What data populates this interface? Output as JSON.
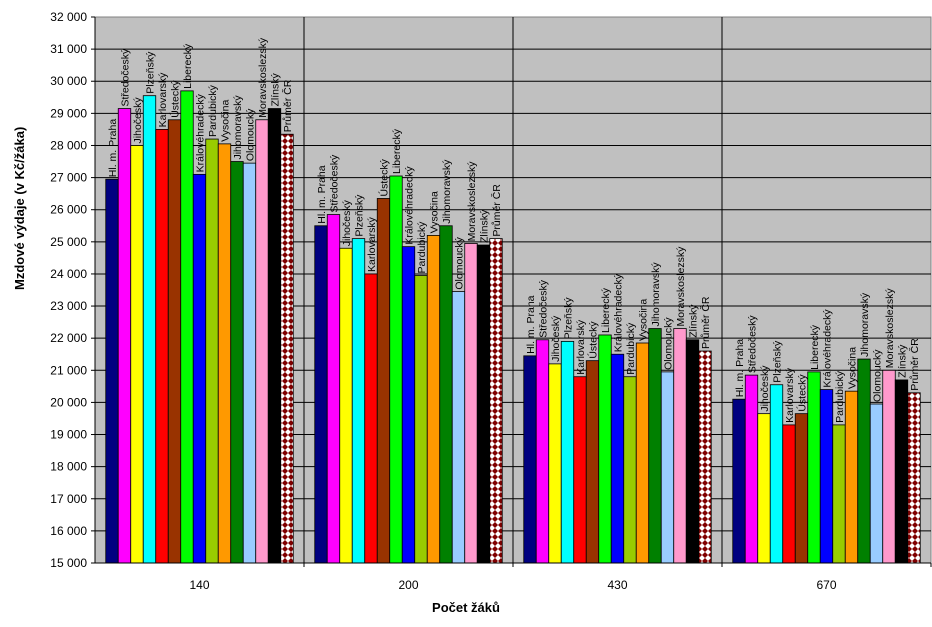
{
  "chart_data": {
    "type": "bar",
    "title": "",
    "xlabel": "Počet žáků",
    "ylabel": "Mzdové výdaje (v Kč/žáka)",
    "ylim": [
      15000,
      32000
    ],
    "ytick_step": 1000,
    "grid": true,
    "legend": "none",
    "categories": [
      "140",
      "200",
      "430",
      "670"
    ],
    "series": [
      {
        "name": "Hl. m. Praha",
        "color": "#000080",
        "pattern": "solid",
        "values": [
          26950,
          25500,
          21450,
          20100
        ]
      },
      {
        "name": "Středočeský",
        "color": "#ff00ff",
        "pattern": "solid",
        "values": [
          29150,
          25850,
          21950,
          20850
        ]
      },
      {
        "name": "Jihočeský",
        "color": "#ffff00",
        "pattern": "solid",
        "values": [
          28000,
          24800,
          21200,
          19650
        ]
      },
      {
        "name": "Plzeňský",
        "color": "#00ffff",
        "pattern": "solid",
        "values": [
          29550,
          25100,
          21900,
          20550
        ]
      },
      {
        "name": "Karlovarský",
        "color": "#ff0000",
        "pattern": "solid",
        "values": [
          28500,
          24000,
          20800,
          19300
        ]
      },
      {
        "name": "Ústecký",
        "color": "#993300",
        "pattern": "solid",
        "values": [
          28800,
          26350,
          21300,
          19650
        ]
      },
      {
        "name": "Liberecký",
        "color": "#00ff00",
        "pattern": "solid",
        "values": [
          29700,
          27050,
          22100,
          20950
        ]
      },
      {
        "name": "Královéhradecký",
        "color": "#0000ff",
        "pattern": "solid",
        "values": [
          27100,
          24850,
          21500,
          20400
        ]
      },
      {
        "name": "Pardubický",
        "color": "#99cc00",
        "pattern": "solid",
        "values": [
          28200,
          23950,
          20800,
          19300
        ]
      },
      {
        "name": "Vysočina",
        "color": "#ff9900",
        "pattern": "solid",
        "values": [
          28050,
          25200,
          21850,
          20350
        ]
      },
      {
        "name": "Jihomoravský",
        "color": "#008000",
        "pattern": "solid",
        "values": [
          27500,
          25500,
          22300,
          21350
        ]
      },
      {
        "name": "Olomoucký",
        "color": "#99ccff",
        "pattern": "solid",
        "values": [
          27450,
          23450,
          20950,
          19950
        ]
      },
      {
        "name": "Moravskoslezský",
        "color": "#ff99cc",
        "pattern": "solid",
        "values": [
          28800,
          24950,
          22300,
          21000
        ]
      },
      {
        "name": "Zlínský",
        "color": "#000000",
        "pattern": "solid",
        "values": [
          29150,
          24900,
          21950,
          20700
        ]
      },
      {
        "name": "Průměr ČR",
        "color": "#800000",
        "pattern": "diamond",
        "values": [
          28350,
          25100,
          21600,
          20300
        ]
      }
    ]
  }
}
